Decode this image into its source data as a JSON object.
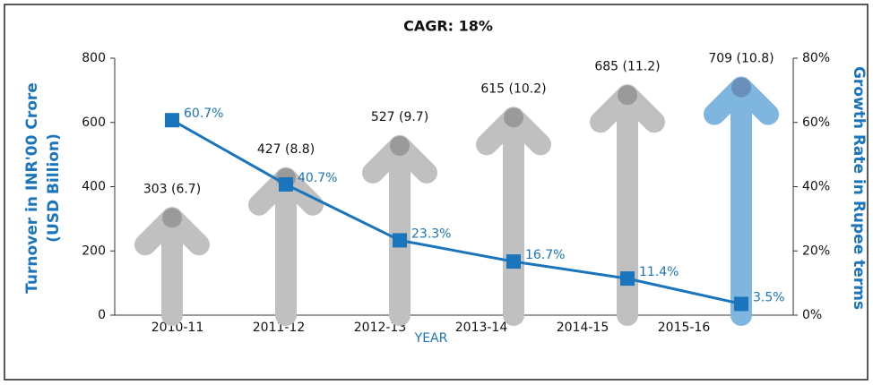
{
  "chart_data": {
    "type": "bar",
    "title": "CAGR: 18%",
    "xlabel": "YEAR",
    "ylabel": [
      "Turnover in INR'00 Crore",
      "(USD Billion)"
    ],
    "y2label": "Growth Rate in Rupee terms",
    "categories": [
      "2010-11",
      "2011-12",
      "2012-13",
      "2013-14",
      "2014-15",
      "2015-16"
    ],
    "series": [
      {
        "name": "Turnover",
        "type": "bar",
        "colors": [
          "#c0c0c0",
          "#c0c0c0",
          "#c0c0c0",
          "#c0c0c0",
          "#c0c0c0",
          "#7fb6e0"
        ],
        "values": [
          303,
          427,
          527,
          615,
          685,
          709
        ],
        "value_labels": [
          "303 (6.7)",
          "427 (8.8)",
          "527 (9.7)",
          "615 (10.2)",
          "685 (11.2)",
          "709 (10.8)"
        ]
      },
      {
        "name": "Growth Rate",
        "type": "line",
        "axis": "y2",
        "color": "#1a75bc",
        "values": [
          60.7,
          40.7,
          23.3,
          16.7,
          11.4,
          3.5
        ],
        "value_labels": [
          "60.7%",
          "40.7%",
          "23.3%",
          "16.7%",
          "11.4%",
          "3.5%"
        ]
      }
    ],
    "ylim": [
      0,
      800
    ],
    "yticks": [
      0,
      200,
      400,
      600,
      800
    ],
    "y2lim": [
      0,
      80
    ],
    "y2ticks": [
      {
        "value": 0,
        "label": "0%"
      },
      {
        "value": 20,
        "label": "20%"
      },
      {
        "value": 40,
        "label": "40%"
      },
      {
        "value": 60,
        "label": "60%"
      },
      {
        "value": 80,
        "label": "80%"
      }
    ]
  }
}
